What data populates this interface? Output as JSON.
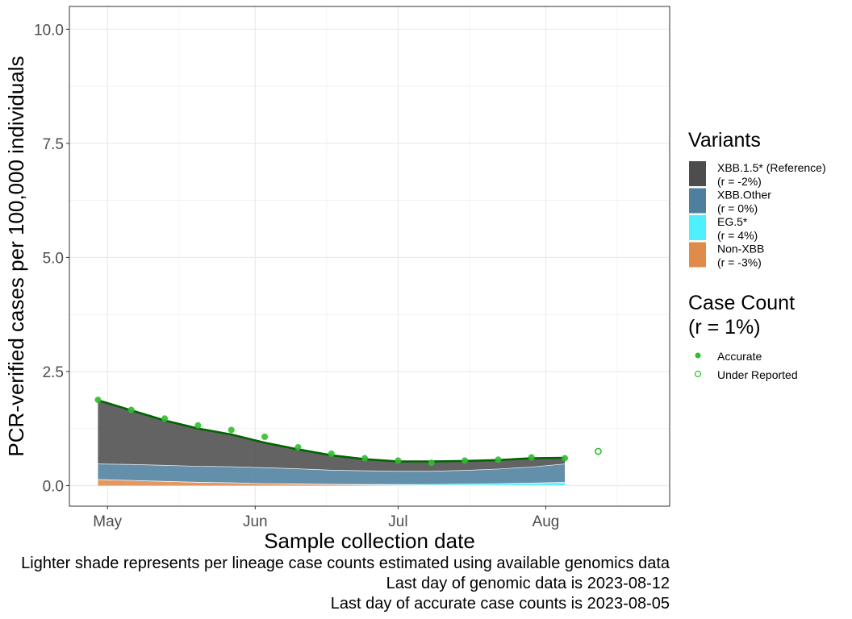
{
  "chart_data": {
    "type": "area",
    "xlabel": "Sample collection date",
    "ylabel": "PCR-verified cases per 100,000 individuals",
    "ylim": [
      -0.45,
      10.5
    ],
    "xlim": [
      "2023-04-23",
      "2023-08-27"
    ],
    "y_ticks": [
      0.0,
      2.5,
      5.0,
      7.5,
      10.0
    ],
    "y_tick_labels": [
      "0.0",
      "2.5",
      "5.0",
      "7.5",
      "10.0"
    ],
    "x_ticks": [
      "2023-05-01",
      "2023-06-01",
      "2023-07-01",
      "2023-08-01"
    ],
    "x_tick_labels": [
      "May",
      "Jun",
      "Jul",
      "Aug"
    ],
    "grid": true,
    "legend_position": "right",
    "x": [
      "2023-04-29",
      "2023-05-06",
      "2023-05-13",
      "2023-05-20",
      "2023-05-27",
      "2023-06-03",
      "2023-06-10",
      "2023-06-17",
      "2023-06-24",
      "2023-07-01",
      "2023-07-08",
      "2023-07-15",
      "2023-07-22",
      "2023-07-29",
      "2023-08-05"
    ],
    "series": [
      {
        "name": "Non-XBB",
        "color": "#E08A4B",
        "values": [
          0.14,
          0.12,
          0.1,
          0.08,
          0.07,
          0.05,
          0.04,
          0.03,
          0.02,
          0.015,
          0.01,
          0.01,
          0.01,
          0.008,
          0.005
        ]
      },
      {
        "name": "EG.5*",
        "color": "#4EF0FF",
        "values": [
          0.0,
          0.0,
          0.0,
          0.0,
          0.0,
          0.0,
          0.005,
          0.005,
          0.01,
          0.015,
          0.02,
          0.03,
          0.04,
          0.055,
          0.075
        ]
      },
      {
        "name": "XBB.Other",
        "color": "#4F7F9F",
        "values": [
          0.34,
          0.35,
          0.35,
          0.35,
          0.35,
          0.35,
          0.33,
          0.31,
          0.3,
          0.29,
          0.29,
          0.3,
          0.32,
          0.35,
          0.4
        ]
      },
      {
        "name": "XBB.1.5* (Reference)",
        "color": "#4D4D4D",
        "values": [
          1.39,
          1.18,
          0.98,
          0.82,
          0.7,
          0.54,
          0.42,
          0.32,
          0.25,
          0.21,
          0.21,
          0.2,
          0.19,
          0.19,
          0.13
        ]
      }
    ],
    "total_line": {
      "color": "#006400",
      "values": [
        1.87,
        1.65,
        1.43,
        1.25,
        1.12,
        0.94,
        0.795,
        0.665,
        0.58,
        0.53,
        0.53,
        0.54,
        0.56,
        0.6,
        0.61
      ]
    },
    "case_counts": {
      "accurate": {
        "x": [
          "2023-04-29",
          "2023-05-06",
          "2023-05-13",
          "2023-05-20",
          "2023-05-27",
          "2023-06-03",
          "2023-06-10",
          "2023-06-17",
          "2023-06-24",
          "2023-07-01",
          "2023-07-08",
          "2023-07-15",
          "2023-07-22",
          "2023-07-29",
          "2023-08-05"
        ],
        "y": [
          1.88,
          1.66,
          1.47,
          1.32,
          1.22,
          1.07,
          0.84,
          0.7,
          0.6,
          0.55,
          0.5,
          0.55,
          0.57,
          0.62,
          0.6
        ]
      },
      "under_reported": {
        "x": [
          "2023-08-12"
        ],
        "y": [
          0.75
        ]
      },
      "color": "#2FBF2F"
    }
  },
  "legend": {
    "variants_title": "Variants",
    "variants": [
      {
        "label": "XBB.1.5* (Reference)",
        "sub": "(r = -2%)",
        "color": "#4D4D4D"
      },
      {
        "label": "XBB.Other",
        "sub": "(r = 0%)",
        "color": "#4F7F9F"
      },
      {
        "label": "EG.5*",
        "sub": "(r = 4%)",
        "color": "#4EF0FF"
      },
      {
        "label": "Non-XBB",
        "sub": "(r = -3%)",
        "color": "#E08A4B"
      }
    ],
    "case_title_line1": "Case Count",
    "case_title_line2": "(r = 1%)",
    "accurate_label": "Accurate",
    "under_reported_label": "Under Reported"
  },
  "captions": [
    "Lighter shade represents per lineage case counts estimated using available genomics data",
    "Last day of genomic data is 2023-08-12",
    "Last day of accurate case counts is 2023-08-05"
  ]
}
